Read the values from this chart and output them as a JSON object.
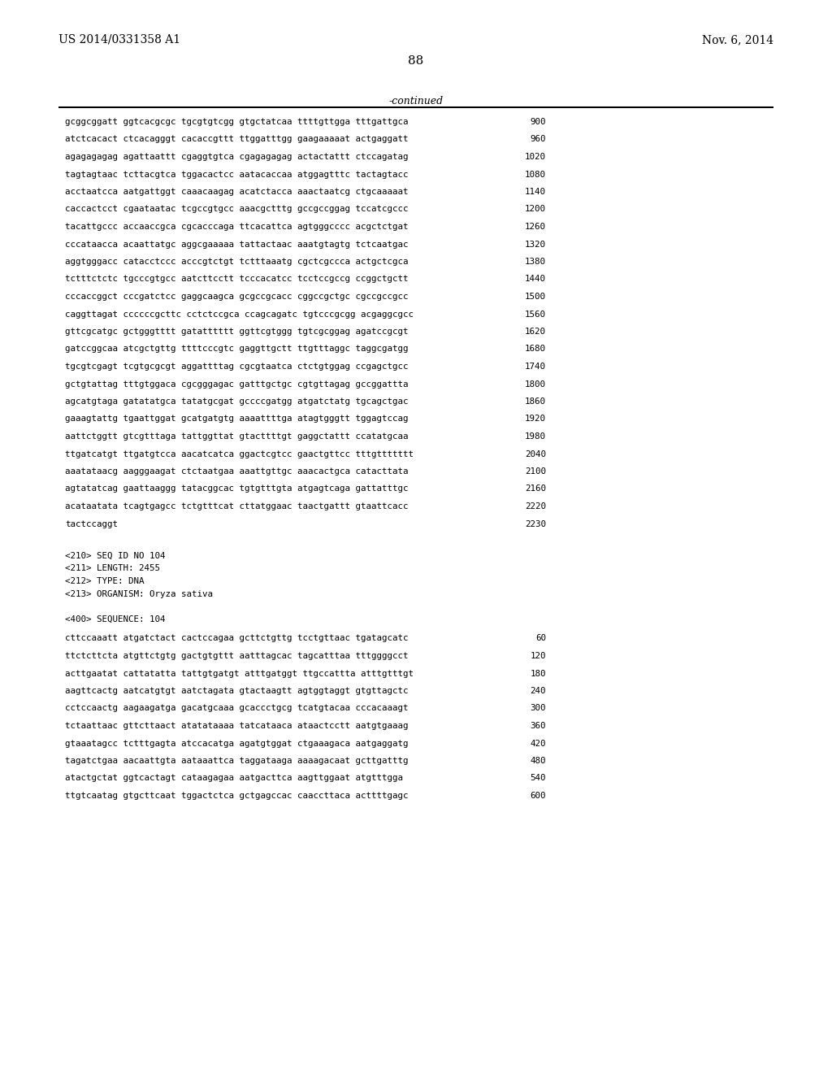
{
  "left_header": "US 2014/0331358 A1",
  "right_header": "Nov. 6, 2014",
  "page_number": "88",
  "continued_text": "-continued",
  "background_color": "#ffffff",
  "text_color": "#000000",
  "sequence_lines": [
    [
      "gcggcggatt ggtcacgcgc tgcgtgtcgg gtgctatcaa ttttgttgga tttgattgca",
      "900"
    ],
    [
      "atctcacact ctcacagggt cacaccgttt ttggatttgg gaagaaaaat actgaggatt",
      "960"
    ],
    [
      "agagagagag agattaattt cgaggtgtca cgagagagag actactattt ctccagatag",
      "1020"
    ],
    [
      "tagtagtaac tcttacgtca tggacactcc aatacaccaa atggagtttc tactagtacc",
      "1080"
    ],
    [
      "acctaatcca aatgattggt caaacaagag acatctacca aaactaatcg ctgcaaaaat",
      "1140"
    ],
    [
      "caccactcct cgaataatac tcgccgtgcc aaacgctttg gccgccggag tccatcgccc",
      "1200"
    ],
    [
      "tacattgccc accaaccgca cgcacccaga ttcacattca agtgggcccc acgctctgat",
      "1260"
    ],
    [
      "cccataacca acaattatgc aggcgaaaaa tattactaac aaatgtagtg tctcaatgac",
      "1320"
    ],
    [
      "aggtgggacc catacctccc acccgtctgt tctttaaatg cgctcgccca actgctcgca",
      "1380"
    ],
    [
      "tctttctctc tgcccgtgcc aatcttcctt tcccacatcc tcctccgccg ccggctgctt",
      "1440"
    ],
    [
      "cccaccggct cccgatctcc gaggcaagca gcgccgcacc cggccgctgc cgccgccgcc",
      "1500"
    ],
    [
      "caggttagat ccccccgcttc cctctccgca ccagcagatc tgtcccgcgg acgaggcgcc",
      "1560"
    ],
    [
      "gttcgcatgc gctgggtttt gatatttttt ggttcgtggg tgtcgcggag agatccgcgt",
      "1620"
    ],
    [
      "gatccggcaa atcgctgttg ttttcccgtc gaggttgctt ttgtttaggc taggcgatgg",
      "1680"
    ],
    [
      "tgcgtcgagt tcgtgcgcgt aggattttag cgcgtaatca ctctgtggag ccgagctgcc",
      "1740"
    ],
    [
      "gctgtattag tttgtggaca cgcgggagac gatttgctgc cgtgttagag gccggattta",
      "1800"
    ],
    [
      "agcatgtaga gatatatgca tatatgcgat gccccgatgg atgatctatg tgcagctgac",
      "1860"
    ],
    [
      "gaaagtattg tgaattggat gcatgatgtg aaaattttga atagtgggtt tggagtccag",
      "1920"
    ],
    [
      "aattctggtt gtcgtttaga tattggttat gtacttttgt gaggctattt ccatatgcaa",
      "1980"
    ],
    [
      "ttgatcatgt ttgatgtcca aacatcatca ggactcgtcc gaactgttcc tttgttttttt",
      "2040"
    ],
    [
      "aaatataacg aagggaagat ctctaatgaa aaattgttgc aaacactgca catacttata",
      "2100"
    ],
    [
      "agtatatcag gaattaaggg tatacggcac tgtgtttgta atgagtcaga gattatttgc",
      "2160"
    ],
    [
      "acataatata tcagtgagcc tctgtttcat cttatggaac taactgattt gtaattcacc",
      "2220"
    ],
    [
      "tactccaggt",
      "2230"
    ]
  ],
  "metadata_lines": [
    "<210> SEQ ID NO 104",
    "<211> LENGTH: 2455",
    "<212> TYPE: DNA",
    "<213> ORGANISM: Oryza sativa"
  ],
  "feature_line": "<400> SEQUENCE: 104",
  "seq_lines_2": [
    [
      "cttccaaatt atgatctact cactccagaa gcttctgttg tcctgttaac tgatagcatc",
      "60"
    ],
    [
      "ttctcttcta atgttctgtg gactgtgttt aatttagcac tagcatttaa tttggggcct",
      "120"
    ],
    [
      "acttgaatat cattatatta tattgtgatgt atttgatggt ttgccattta atttgtttgt",
      "180"
    ],
    [
      "aagttcactg aatcatgtgt aatctagata gtactaagtt agtggtaggt gtgttagctc",
      "240"
    ],
    [
      "cctccaactg aagaagatga gacatgcaaa gcaccctgcg tcatgtacaa cccacaaagt",
      "300"
    ],
    [
      "tctaattaac gttcttaact atatataaaa tatcataaca ataactcctt aatgtgaaag",
      "360"
    ],
    [
      "gtaaatagcc tctttgagta atccacatga agatgtggat ctgaaagaca aatgaggatg",
      "420"
    ],
    [
      "tagatctgaa aacaattgta aataaattca taggataaga aaaagacaat gcttgatttg",
      "480"
    ],
    [
      "atactgctat ggtcactagt cataagagaa aatgacttca aagttggaat atgtttgga",
      "540"
    ],
    [
      "ttgtcaatag gtgcttcaat tggactctca gctgagccac caaccttaca acttttgagc",
      "600"
    ]
  ]
}
